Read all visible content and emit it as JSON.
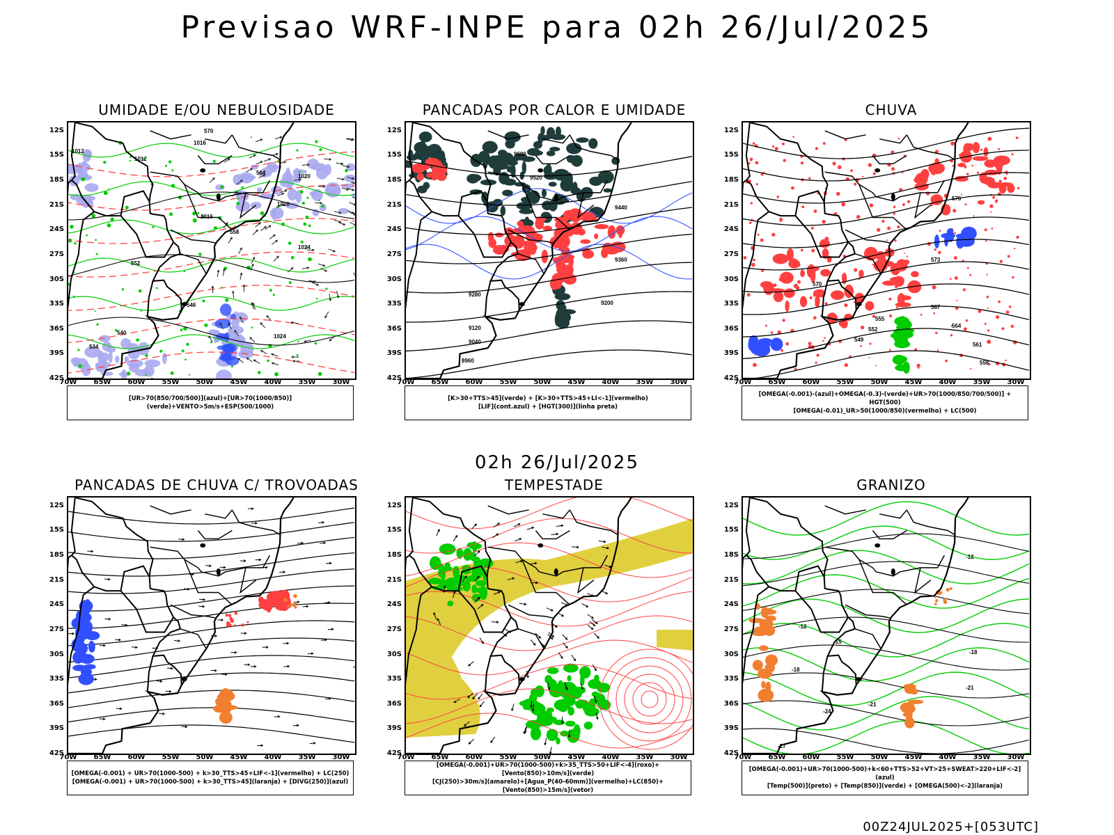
{
  "title": "Previsao WRF-INPE  para 02h 26/Jul/2025",
  "mid_title": "02h 26/Jul/2025",
  "footer": "00Z24JUL2025+[053UTC]",
  "lat_labels": [
    "12S",
    "15S",
    "18S",
    "21S",
    "24S",
    "27S",
    "30S",
    "33S",
    "36S",
    "39S",
    "42S"
  ],
  "lon_labels": [
    "70W",
    "65W",
    "60W",
    "55W",
    "50W",
    "45W",
    "40W",
    "35W",
    "30W"
  ],
  "colors": {
    "red": "#ff4040",
    "green": "#00cc00",
    "blue": "#3050ff",
    "lavender": "#a8a8f0",
    "yellow": "#e0d040",
    "darkteal": "#1f3c3a",
    "orange": "#f08030"
  },
  "panels": [
    {
      "title": "UMIDADE E/OU NEBULOSIDADE",
      "legend": [
        "[UR>70(850/700/500)](azul)+[UR>70(1000/850)](verde)+VENTO>5m/s+ESP(500/1000)"
      ],
      "labels": [
        "1012",
        "1012",
        "1016",
        "1016",
        "1020",
        "1020",
        "1024",
        "1024",
        "570",
        "564",
        "558",
        "552",
        "546",
        "540",
        "534"
      ]
    },
    {
      "title": "PANCADAS POR CALOR E UMIDADE",
      "legend": [
        "[K>30+TTS>45](verde) + [K>30+TTS>45+LI<-1](vermelho)",
        "[LIF](cont.azul) + [HGT(300)](linha preta)"
      ],
      "labels": [
        "9600",
        "9520",
        "9440",
        "9360",
        "9280",
        "9200",
        "9120",
        "9040",
        "8960"
      ]
    },
    {
      "title": "CHUVA",
      "legend": [
        "[OMEGA(-0.001)-(azul)+OMEGA(-0.3)-(verde)+UR>70(1000/850/700/500)] + HGT(500)",
        "[OMEGA(-0.01)_UR>50(1000/850)(vermelho) + LC(500)"
      ],
      "labels": [
        "576",
        "573",
        "570",
        "567",
        "564",
        "561",
        "558",
        "555",
        "552",
        "549"
      ]
    },
    {
      "title": "PANCADAS DE CHUVA C/ TROVOADAS",
      "legend": [
        "[OMEGA(-0.001) + UR>70(1000-500) + k>30_TTS>45+LIF<-1](vermelho) + LC(250)",
        "[OMEGA(-0.001) + UR>70(1000-500) + k>30_TTS>45](laranja) + [DIVG(250)](azul)"
      ],
      "labels": []
    },
    {
      "title": "TEMPESTADE",
      "legend": [
        "[OMEGA(-0.001)+UR>70(1000-500)+k>35_TTS>50+LIF<-4](roxo)+[Vento(850)>10m/s](verde)",
        "[CJ(250)>30m/s](amarelo)+[Agua_P(40-60mm)](vermelho)+LC(850)+[Vento(850)>15m/s](vetor)"
      ],
      "labels": []
    },
    {
      "title": "GRANIZO",
      "legend": [
        "[OMEGA(-0.001)+UR>70(1000-500)+k<60+TTS>52+VT>25+SWEAT>220+LIF<-2](azul)",
        "[Temp(500)](preto) + [Temp(850)](verde) + [OMEGA(500)<-2](laranja)"
      ],
      "labels": [
        "-12",
        "-12",
        "-15",
        "-18",
        "-18",
        "-21",
        "-21",
        "-24",
        "-27"
      ]
    }
  ]
}
